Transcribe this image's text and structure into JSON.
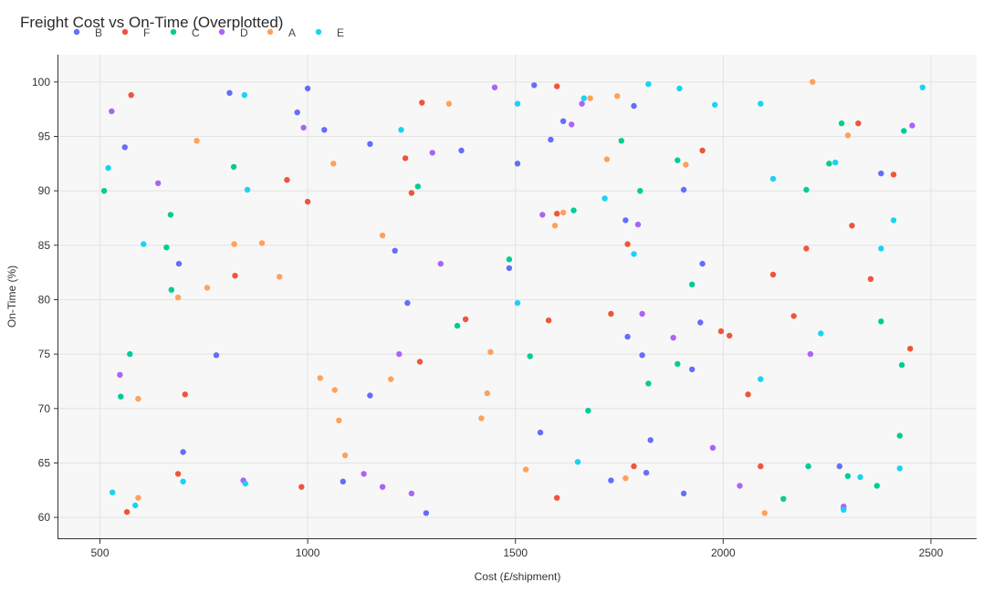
{
  "chart_data": {
    "type": "scatter",
    "title": "Freight Cost vs On-Time (Overplotted)",
    "xlabel": "Cost (£/shipment)",
    "ylabel": "On-Time (%)",
    "xlim": [
      400,
      2610
    ],
    "ylim": [
      58,
      102.5
    ],
    "xticks": [
      500,
      1000,
      1500,
      2000,
      2500
    ],
    "yticks": [
      60,
      65,
      70,
      75,
      80,
      85,
      90,
      95,
      100
    ],
    "grid": true,
    "legend_position": "top-left",
    "colors": {
      "B": "#636efa",
      "F": "#ef553b",
      "C": "#00cc96",
      "D": "#ab63fa",
      "A": "#ffa15a",
      "E": "#19d3f3"
    },
    "series": [
      {
        "name": "B",
        "points": [
          [
            812,
            99
          ],
          [
            1000,
            99.4
          ],
          [
            975,
            97.2
          ],
          [
            1040,
            95.6
          ],
          [
            1150,
            94.3
          ],
          [
            1370,
            93.7
          ],
          [
            1545,
            99.7
          ],
          [
            1615,
            96.4
          ],
          [
            1585,
            94.7
          ],
          [
            1785,
            97.8
          ],
          [
            1505,
            92.5
          ],
          [
            1905,
            90.1
          ],
          [
            1765,
            87.3
          ],
          [
            1210,
            84.5
          ],
          [
            1485,
            82.9
          ],
          [
            690,
            83.3
          ],
          [
            1950,
            83.3
          ],
          [
            1240,
            79.7
          ],
          [
            1945,
            77.9
          ],
          [
            1770,
            76.6
          ],
          [
            1805,
            74.9
          ],
          [
            1925,
            73.6
          ],
          [
            780,
            74.9
          ],
          [
            1150,
            71.2
          ],
          [
            560,
            94
          ],
          [
            1560,
            67.8
          ],
          [
            1825,
            67.1
          ],
          [
            700,
            66
          ],
          [
            2280,
            64.7
          ],
          [
            1815,
            64.1
          ],
          [
            1730,
            63.4
          ],
          [
            1085,
            63.3
          ],
          [
            1905,
            62.2
          ],
          [
            1285,
            60.4
          ],
          [
            2380,
            91.6
          ]
        ]
      },
      {
        "name": "F",
        "points": [
          [
            575,
            98.8
          ],
          [
            1275,
            98.1
          ],
          [
            1600,
            99.6
          ],
          [
            2325,
            96.2
          ],
          [
            1950,
            93.7
          ],
          [
            1235,
            93
          ],
          [
            950,
            91
          ],
          [
            1250,
            89.8
          ],
          [
            1000,
            89
          ],
          [
            1600,
            87.9
          ],
          [
            2310,
            86.8
          ],
          [
            1770,
            85.1
          ],
          [
            2200,
            84.7
          ],
          [
            2120,
            82.3
          ],
          [
            825,
            82.2
          ],
          [
            2355,
            81.9
          ],
          [
            1730,
            78.7
          ],
          [
            1380,
            78.2
          ],
          [
            1580,
            78.1
          ],
          [
            2170,
            78.5
          ],
          [
            1995,
            77.1
          ],
          [
            2015,
            76.7
          ],
          [
            2450,
            75.5
          ],
          [
            1270,
            74.3
          ],
          [
            705,
            71.3
          ],
          [
            2060,
            71.3
          ],
          [
            1785,
            64.7
          ],
          [
            2090,
            64.7
          ],
          [
            688,
            64
          ],
          [
            985,
            62.8
          ],
          [
            1600,
            61.8
          ],
          [
            565,
            60.5
          ],
          [
            2410,
            91.5
          ]
        ]
      },
      {
        "name": "C",
        "points": [
          [
            510,
            90
          ],
          [
            822,
            92.2
          ],
          [
            670,
            87.8
          ],
          [
            660,
            84.8
          ],
          [
            672,
            80.9
          ],
          [
            572,
            75
          ],
          [
            550,
            71.1
          ],
          [
            1265,
            90.4
          ],
          [
            1485,
            83.7
          ],
          [
            1360,
            77.6
          ],
          [
            1535,
            74.8
          ],
          [
            1755,
            94.6
          ],
          [
            1640,
            88.2
          ],
          [
            1800,
            90
          ],
          [
            1890,
            92.8
          ],
          [
            1925,
            81.4
          ],
          [
            1890,
            74.1
          ],
          [
            1820,
            72.3
          ],
          [
            1675,
            69.8
          ],
          [
            2145,
            61.7
          ],
          [
            2200,
            90.1
          ],
          [
            2255,
            92.5
          ],
          [
            2285,
            96.2
          ],
          [
            2435,
            95.5
          ],
          [
            2380,
            78
          ],
          [
            2430,
            74
          ],
          [
            2425,
            67.5
          ],
          [
            2205,
            64.7
          ],
          [
            2300,
            63.8
          ],
          [
            2370,
            62.9
          ],
          [
            2290,
            60.8
          ]
        ]
      },
      {
        "name": "D",
        "points": [
          [
            528,
            97.3
          ],
          [
            990,
            95.8
          ],
          [
            640,
            90.7
          ],
          [
            1300,
            93.5
          ],
          [
            1450,
            99.5
          ],
          [
            1660,
            98
          ],
          [
            1635,
            96.1
          ],
          [
            1565,
            87.8
          ],
          [
            1795,
            86.9
          ],
          [
            1320,
            83.3
          ],
          [
            1220,
            75
          ],
          [
            1805,
            78.7
          ],
          [
            1880,
            76.5
          ],
          [
            2210,
            75
          ],
          [
            548,
            73.1
          ],
          [
            1975,
            66.4
          ],
          [
            845,
            63.4
          ],
          [
            1135,
            64
          ],
          [
            1180,
            62.8
          ],
          [
            1250,
            62.2
          ],
          [
            2040,
            62.9
          ],
          [
            2290,
            61
          ],
          [
            2455,
            96
          ]
        ]
      },
      {
        "name": "A",
        "points": [
          [
            733,
            94.6
          ],
          [
            1062,
            92.5
          ],
          [
            823,
            85.1
          ],
          [
            890,
            85.2
          ],
          [
            932,
            82.1
          ],
          [
            758,
            81.1
          ],
          [
            688,
            80.2
          ],
          [
            1180,
            85.9
          ],
          [
            1340,
            98
          ],
          [
            1680,
            98.5
          ],
          [
            1745,
            98.7
          ],
          [
            1720,
            92.9
          ],
          [
            1615,
            88
          ],
          [
            1595,
            86.8
          ],
          [
            1910,
            92.4
          ],
          [
            2215,
            100
          ],
          [
            2300,
            95.1
          ],
          [
            1440,
            75.2
          ],
          [
            1030,
            72.8
          ],
          [
            1200,
            72.7
          ],
          [
            1065,
            71.7
          ],
          [
            1432,
            71.4
          ],
          [
            1075,
            68.9
          ],
          [
            1418,
            69.1
          ],
          [
            592,
            70.9
          ],
          [
            1090,
            65.7
          ],
          [
            1525,
            64.4
          ],
          [
            1765,
            63.6
          ],
          [
            592,
            61.8
          ],
          [
            2100,
            60.4
          ]
        ]
      },
      {
        "name": "E",
        "points": [
          [
            848,
            98.8
          ],
          [
            520,
            92.1
          ],
          [
            855,
            90.1
          ],
          [
            605,
            85.1
          ],
          [
            1225,
            95.6
          ],
          [
            1505,
            98
          ],
          [
            1665,
            98.5
          ],
          [
            1820,
            99.8
          ],
          [
            1895,
            99.4
          ],
          [
            1980,
            97.9
          ],
          [
            2090,
            98
          ],
          [
            2120,
            91.1
          ],
          [
            2270,
            92.6
          ],
          [
            1715,
            89.3
          ],
          [
            1785,
            84.2
          ],
          [
            1505,
            79.7
          ],
          [
            2380,
            84.7
          ],
          [
            2410,
            87.3
          ],
          [
            2235,
            76.9
          ],
          [
            2090,
            72.7
          ],
          [
            2480,
            99.5
          ],
          [
            530,
            62.3
          ],
          [
            585,
            61.1
          ],
          [
            700,
            63.3
          ],
          [
            850,
            63.1
          ],
          [
            1650,
            65.1
          ],
          [
            2330,
            63.7
          ],
          [
            2425,
            64.5
          ],
          [
            2290,
            60.7
          ]
        ]
      }
    ]
  }
}
